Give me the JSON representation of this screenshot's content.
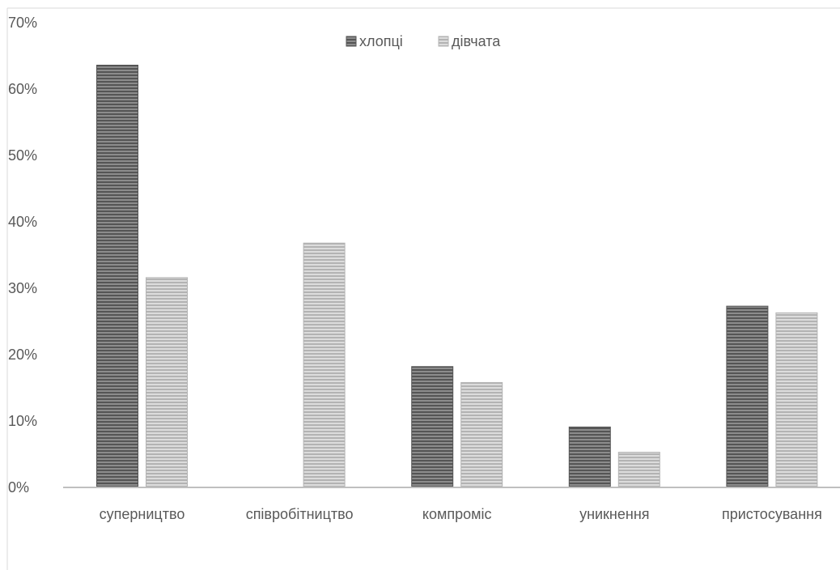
{
  "chart_data": {
    "type": "bar",
    "title": "",
    "xlabel": "",
    "ylabel": "",
    "categories": [
      "суперництво",
      "співробітництво",
      "компроміс",
      "уникнення",
      "пристосування"
    ],
    "series": [
      {
        "name": "хлопці",
        "values": [
          63.6,
          0,
          18.2,
          9.1,
          27.3
        ],
        "color": "#555555"
      },
      {
        "name": "дівчата",
        "values": [
          31.6,
          36.8,
          15.8,
          5.3,
          26.3
        ],
        "color": "#b3b3b3"
      }
    ],
    "ylim": [
      0,
      70
    ],
    "yticks": [
      0,
      10,
      20,
      30,
      40,
      50,
      60,
      70
    ],
    "ytick_labels": [
      "0%",
      "10%",
      "20%",
      "30%",
      "40%",
      "50%",
      "60%",
      "70%"
    ],
    "grid": false,
    "legend_position": "top-center",
    "bar_pattern": "horizontal-stripes"
  }
}
